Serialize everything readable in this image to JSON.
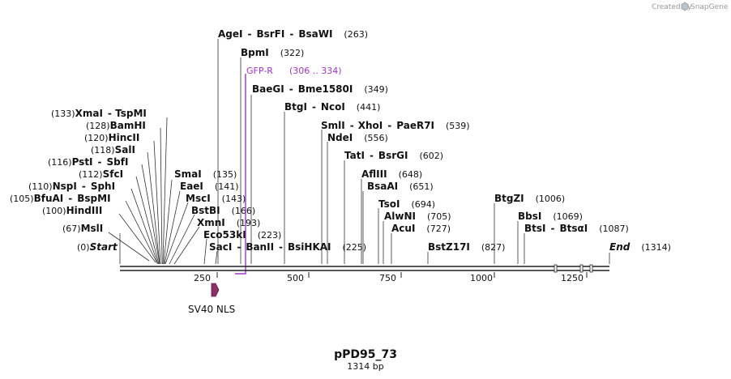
{
  "credit": {
    "prefix": "Created by",
    "brand": "SnapGene"
  },
  "plasmid": {
    "name": "pPD95_73",
    "length_label": "1314 bp",
    "length": 1314
  },
  "scale_ticks": [
    {
      "value": 250,
      "label": "250"
    },
    {
      "value": 500,
      "label": "500"
    },
    {
      "value": 750,
      "label": "750"
    },
    {
      "value": 1000,
      "label": "1000"
    },
    {
      "value": 1250,
      "label": "1250"
    }
  ],
  "sites": [
    {
      "id": "start",
      "names": [
        "Start"
      ],
      "pos_label": "(0)",
      "italic": true,
      "pos_left": true,
      "pos": 0
    },
    {
      "id": "msli",
      "names": [
        "MslI"
      ],
      "pos_label": "(67)",
      "pos_left": true,
      "pos": 67
    },
    {
      "id": "hindiii",
      "names": [
        "HindIII"
      ],
      "pos_label": "(100)",
      "pos_left": true,
      "pos": 100
    },
    {
      "id": "bfuai",
      "names": [
        "BfuAI",
        "BspMI"
      ],
      "pos_label": "(105)",
      "pos_left": true,
      "pos": 105
    },
    {
      "id": "nspi",
      "names": [
        "NspI",
        "SphI"
      ],
      "pos_label": "(110)",
      "pos_left": true,
      "pos": 110
    },
    {
      "id": "sfci",
      "names": [
        "SfcI"
      ],
      "pos_label": "(112)",
      "pos_left": true,
      "pos": 112
    },
    {
      "id": "psti",
      "names": [
        "PstI",
        "SbfI"
      ],
      "pos_label": "(116)",
      "pos_left": true,
      "pos": 116
    },
    {
      "id": "sali",
      "names": [
        "SalI"
      ],
      "pos_label": "(118)",
      "pos_left": true,
      "pos": 118
    },
    {
      "id": "hincii",
      "names": [
        "HincII"
      ],
      "pos_label": "(120)",
      "pos_left": true,
      "pos": 120
    },
    {
      "id": "bamhi",
      "names": [
        "BamHI"
      ],
      "pos_label": "(128)",
      "pos_left": true,
      "pos": 128
    },
    {
      "id": "xmai",
      "names": [
        "XmaI",
        "TspMI"
      ],
      "pos_label": "(133)",
      "pos_left": true,
      "pos": 133
    },
    {
      "id": "smai",
      "names": [
        "SmaI"
      ],
      "pos_label": "(135)",
      "pos_left": false,
      "pos": 135
    },
    {
      "id": "eaei",
      "names": [
        "EaeI"
      ],
      "pos_label": "(141)",
      "pos_left": false,
      "pos": 141
    },
    {
      "id": "msci",
      "names": [
        "MscI"
      ],
      "pos_label": "(143)",
      "pos_left": false,
      "pos": 143
    },
    {
      "id": "bstbi",
      "names": [
        "BstBI"
      ],
      "pos_label": "(166)",
      "pos_left": false,
      "pos": 166
    },
    {
      "id": "xmni",
      "names": [
        "XmnI"
      ],
      "pos_label": "(193)",
      "pos_left": false,
      "pos": 193
    },
    {
      "id": "eco53ki",
      "names": [
        "Eco53kI"
      ],
      "pos_label": "(223)",
      "pos_left": false,
      "pos": 223
    },
    {
      "id": "saci",
      "names": [
        "SacI",
        "BanII",
        "BsiHKAI"
      ],
      "pos_label": "(225)",
      "pos_left": false,
      "pos": 225
    },
    {
      "id": "agei",
      "names": [
        "AgeI",
        "BsrFI",
        "BsaWI"
      ],
      "pos_label": "(263)",
      "pos_left": false,
      "pos": 263
    },
    {
      "id": "bpmi",
      "names": [
        "BpmI"
      ],
      "pos_label": "(322)",
      "pos_left": false,
      "pos": 322
    },
    {
      "id": "baegi",
      "names": [
        "BaeGI",
        "Bme1580I"
      ],
      "pos_label": "(349)",
      "pos_left": false,
      "pos": 349
    },
    {
      "id": "btgi",
      "names": [
        "BtgI",
        "NcoI"
      ],
      "pos_label": "(441)",
      "pos_left": false,
      "pos": 441
    },
    {
      "id": "smli",
      "names": [
        "SmlI",
        "XhoI",
        "PaeR7I"
      ],
      "pos_label": "(539)",
      "pos_left": false,
      "pos": 539
    },
    {
      "id": "ndei",
      "names": [
        "NdeI"
      ],
      "pos_label": "(556)",
      "pos_left": false,
      "pos": 556
    },
    {
      "id": "tati",
      "names": [
        "TatI",
        "BsrGI"
      ],
      "pos_label": "(602)",
      "pos_left": false,
      "pos": 602
    },
    {
      "id": "afliii",
      "names": [
        "AflIII"
      ],
      "pos_label": "(648)",
      "pos_left": false,
      "pos": 648
    },
    {
      "id": "bsaai",
      "names": [
        "BsaAI"
      ],
      "pos_label": "(651)",
      "pos_left": false,
      "pos": 651
    },
    {
      "id": "tsoi",
      "names": [
        "TsoI"
      ],
      "pos_label": "(694)",
      "pos_left": false,
      "pos": 694
    },
    {
      "id": "alwni",
      "names": [
        "AlwNI"
      ],
      "pos_label": "(705)",
      "pos_left": false,
      "pos": 705
    },
    {
      "id": "acui",
      "names": [
        "AcuI"
      ],
      "pos_label": "(727)",
      "pos_left": false,
      "pos": 727
    },
    {
      "id": "bstz17i",
      "names": [
        "BstZ17I"
      ],
      "pos_label": "(827)",
      "pos_left": false,
      "pos": 827
    },
    {
      "id": "btgzi",
      "names": [
        "BtgZI"
      ],
      "pos_label": "(1006)",
      "pos_left": false,
      "pos": 1006
    },
    {
      "id": "bbsi",
      "names": [
        "BbsI"
      ],
      "pos_label": "(1069)",
      "pos_left": false,
      "pos": 1069
    },
    {
      "id": "btsi",
      "names": [
        "BtsI",
        "BtsαI"
      ],
      "pos_label": "(1087)",
      "pos_left": false,
      "pos": 1087
    },
    {
      "id": "end",
      "names": [
        "End"
      ],
      "pos_label": "(1314)",
      "italic": true,
      "pos_left": false,
      "pos": 1314
    }
  ],
  "primer": {
    "name": "GFP-R",
    "range_label": "(306 .. 334)",
    "start": 306,
    "end": 334
  },
  "features": [
    {
      "name": "SV40 NLS",
      "start": 246,
      "end": 267,
      "color": "#8e2f6a"
    }
  ],
  "colors": {
    "primer": "#a333cc",
    "feature": "#8e2f6a",
    "line": "#333333",
    "backbone": "#222222"
  }
}
